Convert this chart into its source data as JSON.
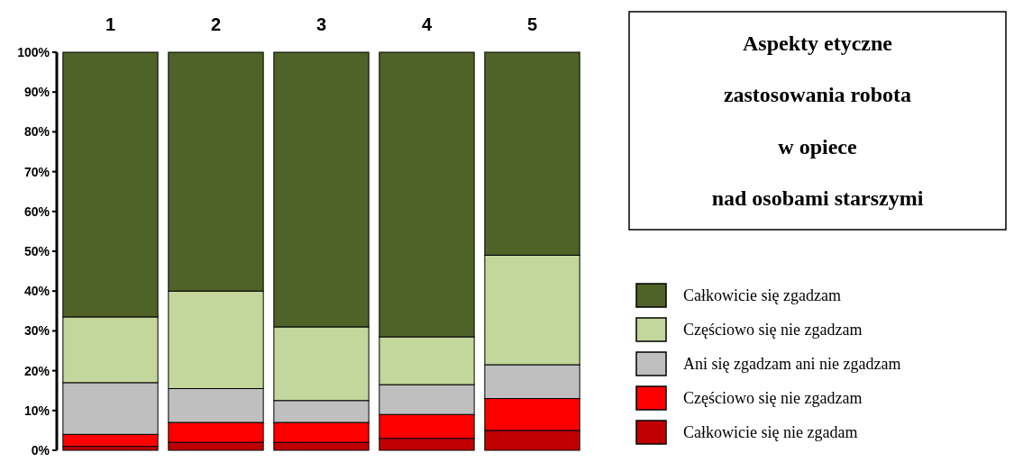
{
  "chart_data": {
    "type": "bar",
    "title": "Aspekty etyczne\nzastosowania robota\nw opiece\nnad osobami starszymi",
    "categories": [
      "1",
      "2",
      "3",
      "4",
      "5"
    ],
    "stacked": true,
    "ylim": [
      0,
      100
    ],
    "yticks": [
      {
        "value": 0,
        "label": "0%"
      },
      {
        "value": 10,
        "label": "10%"
      },
      {
        "value": 20,
        "label": "20%"
      },
      {
        "value": 30,
        "label": "30%"
      },
      {
        "value": 40,
        "label": "40%"
      },
      {
        "value": 50,
        "label": "50%"
      },
      {
        "value": 60,
        "label": "60%"
      },
      {
        "value": 70,
        "label": "70%"
      },
      {
        "value": 80,
        "label": "80%"
      },
      {
        "value": 90,
        "label": "90%"
      },
      {
        "value": 100,
        "label": "100%"
      }
    ],
    "legend": "right",
    "series": [
      {
        "name": "Całkowicie się nie zgadam",
        "color": "#c00000",
        "values": [
          1,
          2,
          2,
          3,
          5
        ]
      },
      {
        "name": "Częściowo się nie zgadzam",
        "color": "#ff0000",
        "values": [
          3,
          5,
          5,
          6,
          8
        ]
      },
      {
        "name": "Ani się zgadzam ani nie zgadzam",
        "color": "#bfbfbf",
        "values": [
          13,
          8.5,
          5.5,
          7.5,
          8.5
        ]
      },
      {
        "name": "Częściowo się nie zgadzam",
        "color": "#c3d69b",
        "values": [
          16.5,
          24.5,
          18.5,
          12,
          27.5
        ]
      },
      {
        "name": "Całkowicie się zgadzam",
        "color": "#4f6228",
        "values": [
          66.5,
          60,
          69,
          71.5,
          51
        ]
      }
    ]
  }
}
